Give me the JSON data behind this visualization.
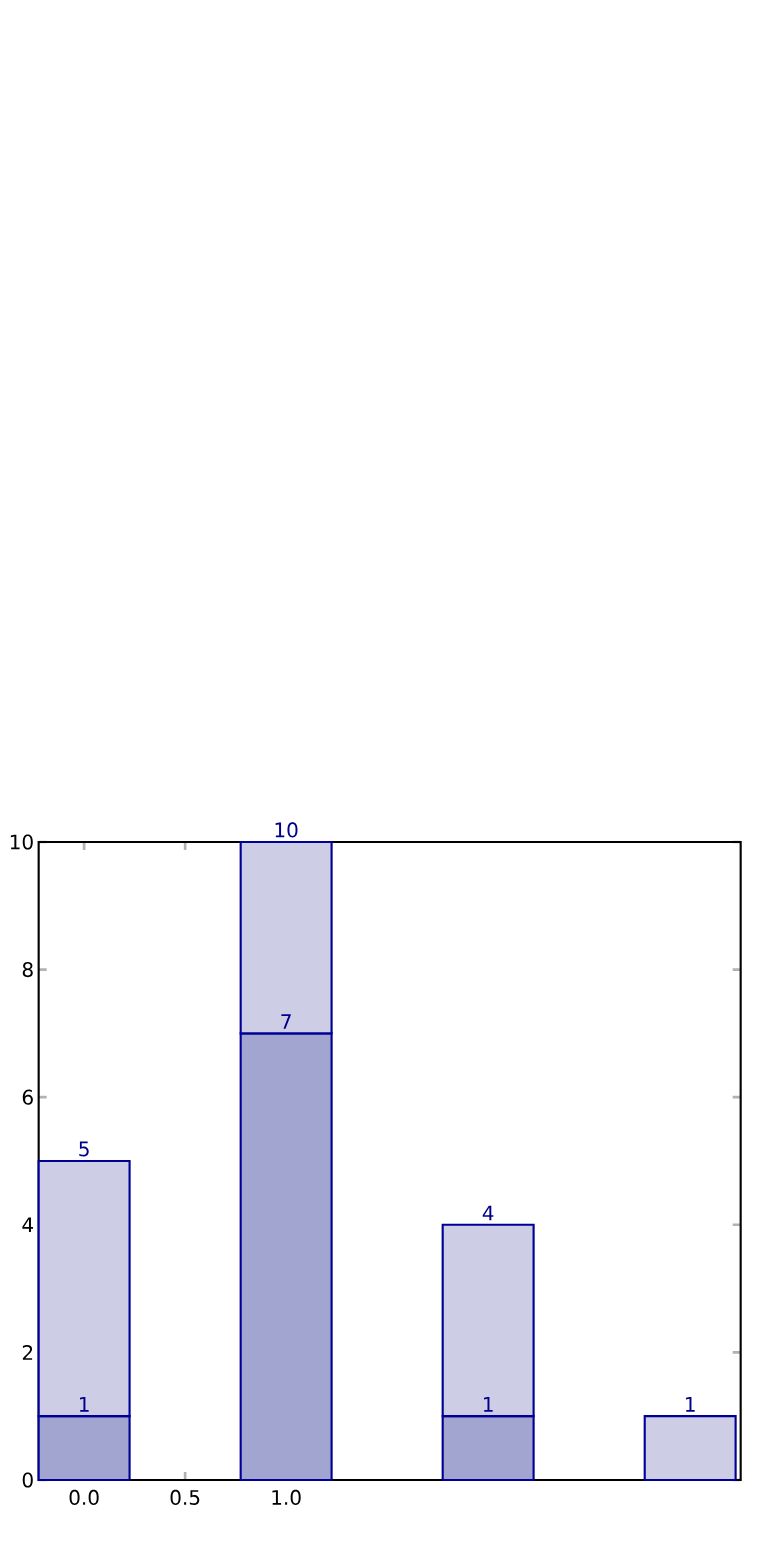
{
  "chart_data": {
    "type": "bar",
    "stacked": true,
    "x": [
      0,
      1,
      2,
      3
    ],
    "series": [
      {
        "color": "#a3a5d1",
        "values": [
          1,
          7,
          1,
          null
        ],
        "value_labels": [
          "1",
          "7",
          "1",
          null
        ]
      },
      {
        "color": "#cdcde5",
        "values": [
          4,
          3,
          3,
          1
        ]
      }
    ],
    "totals": [
      "5",
      "10",
      "4",
      "1"
    ],
    "xlim": [
      -0.225,
      3.25
    ],
    "ylim": [
      0,
      10
    ],
    "xticks": [
      {
        "value": 0,
        "label": "0.0"
      },
      {
        "value": 0.5,
        "label": "0.5"
      },
      {
        "value": 1,
        "label": "1.0"
      }
    ],
    "yticks": [
      0,
      2,
      4,
      6,
      8,
      10
    ]
  }
}
